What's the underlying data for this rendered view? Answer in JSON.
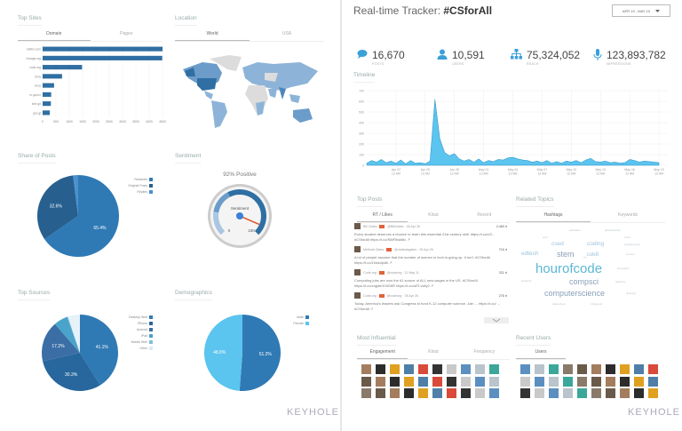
{
  "top_sites": {
    "title": "Top Sites",
    "tabs": [
      "Domain",
      "Pages"
    ],
    "chart_data": {
      "type": "bar",
      "orientation": "horizontal",
      "categories": [
        "twitter.com",
        "change.org",
        "code.org",
        "bit.ly",
        "ow.ly",
        "m.gal.ex",
        "shrt.gd",
        "goo.gl"
      ],
      "values": [
        4500,
        4490,
        1480,
        730,
        430,
        320,
        310,
        270
      ],
      "xlim": [
        0,
        4500
      ],
      "xticks": [
        "0",
        "500",
        "1000",
        "1500",
        "2000",
        "2500",
        "3000",
        "3500",
        "4000",
        "4500"
      ],
      "grid": true,
      "color": "#2f6fa3"
    }
  },
  "location": {
    "title": "Location",
    "tabs": [
      "World",
      "USA"
    ]
  },
  "share_of_posts": {
    "title": "Share of Posts",
    "chart_data": {
      "type": "pie",
      "categories": [
        "Retweets",
        "Original Posts",
        "Replies"
      ],
      "values": [
        65.4,
        32.6,
        2.0
      ],
      "labels": [
        "65.4%",
        "32.6%",
        ""
      ],
      "colors": [
        "#2f7ab5",
        "#27608f",
        "#4a92cf"
      ],
      "legend": "top-right"
    }
  },
  "sentiment": {
    "title": "Sentiment",
    "headline": "92% Positive",
    "gauge_label": "Sentiment",
    "min": "0",
    "max": "100",
    "value": 92
  },
  "top_sources": {
    "title": "Top Sources",
    "chart_data": {
      "type": "pie",
      "categories": [
        "Desktop Web",
        "iPhone",
        "Android",
        "iPad",
        "Mobile Web",
        "Other"
      ],
      "values": [
        41.1,
        30.3,
        17.2,
        6.0,
        0.3,
        5.1
      ],
      "labels": [
        "41.1%",
        "30.3%",
        "17.2%",
        "",
        "",
        ""
      ],
      "colors": [
        "#2f7ab5",
        "#27679d",
        "#3b6ea5",
        "#4aa3cb",
        "#7fbfdc",
        "#e6f2f9"
      ],
      "legend": "top-right"
    }
  },
  "demographics": {
    "title": "Demographics",
    "chart_data": {
      "type": "pie",
      "categories": [
        "Male",
        "Female"
      ],
      "values": [
        51.2,
        48.8
      ],
      "labels": [
        "51.2%",
        "48.8%"
      ],
      "colors": [
        "#2f7ab5",
        "#5bc4ef"
      ],
      "legend": "top-right"
    }
  },
  "logo": "KEYHOLE",
  "tracker": {
    "title_prefix": "Real-time Tracker: ",
    "hashtag": "#CSforAll",
    "date_range": "APR 19 - MAY 19",
    "dropdown_icon": "caret-down"
  },
  "stats": [
    {
      "icon": "speech-bubble",
      "value": "16,670",
      "label": "POSTS"
    },
    {
      "icon": "user",
      "value": "10,591",
      "label": "USERS"
    },
    {
      "icon": "sitemap",
      "value": "75,324,052",
      "label": "REACH"
    },
    {
      "icon": "microphone",
      "value": "123,893,782",
      "label": "IMPRESSIONS"
    }
  ],
  "accent": "#3aa0d8",
  "timeline": {
    "title": "Timeline",
    "chart_data": {
      "type": "area",
      "ylim": [
        0,
        700
      ],
      "yticks": [
        "0",
        "100",
        "200",
        "300",
        "400",
        "500",
        "600",
        "700"
      ],
      "xticks": [
        [
          "Apr 22",
          "12 AM"
        ],
        [
          "Apr 25",
          "12 AM"
        ],
        [
          "Apr 28",
          "12 AM"
        ],
        [
          "May 01",
          "12 AM"
        ],
        [
          "May 04",
          "12 AM"
        ],
        [
          "May 07",
          "12 AM"
        ],
        [
          "May 10",
          "12 AM"
        ],
        [
          "May 13",
          "12 AM"
        ],
        [
          "May 16",
          "12 AM"
        ],
        [
          "May 19",
          "12 AM"
        ]
      ],
      "grid": true,
      "color": "#5bc4ef",
      "x": [
        "Apr 19 12 AM",
        "Apr 19 12 PM",
        "Apr 20 12 AM",
        "Apr 20 12 PM",
        "Apr 21 12 AM",
        "Apr 21 12 PM",
        "Apr 22 12 AM",
        "Apr 22 12 PM",
        "Apr 23 12 AM",
        "Apr 23 12 PM",
        "Apr 24 12 AM",
        "Apr 24 12 PM",
        "Apr 25 12 AM",
        "Apr 25 12 PM",
        "Apr 26 12 AM",
        "Apr 26 12 PM",
        "Apr 27 12 AM",
        "Apr 27 12 PM",
        "Apr 28 12 AM",
        "Apr 28 12 PM",
        "Apr 29 12 AM",
        "Apr 29 12 PM",
        "Apr 30 12 AM",
        "Apr 30 12 PM",
        "May 01 12 AM",
        "May 01 12 PM",
        "May 02 12 AM",
        "May 02 12 PM",
        "May 03 12 AM",
        "May 03 12 PM",
        "May 04 12 AM",
        "May 04 12 PM",
        "May 05 12 AM",
        "May 05 12 PM",
        "May 06 12 AM",
        "May 06 12 PM",
        "May 07 12 AM",
        "May 07 12 PM",
        "May 08 12 AM",
        "May 08 12 PM",
        "May 09 12 AM",
        "May 09 12 PM",
        "May 10 12 AM",
        "May 10 12 PM",
        "May 11 12 AM",
        "May 11 12 PM",
        "May 12 12 AM",
        "May 12 12 PM",
        "May 13 12 AM",
        "May 13 12 PM",
        "May 14 12 AM",
        "May 14 12 PM",
        "May 15 12 AM",
        "May 15 12 PM",
        "May 16 12 AM",
        "May 16 12 PM",
        "May 17 12 AM",
        "May 17 12 PM",
        "May 18 12 AM",
        "May 18 12 PM",
        "May 19 12 AM"
      ],
      "y": [
        20,
        45,
        30,
        55,
        25,
        40,
        20,
        50,
        15,
        45,
        20,
        25,
        15,
        40,
        620,
        250,
        120,
        90,
        110,
        60,
        40,
        55,
        30,
        60,
        25,
        45,
        35,
        55,
        50,
        70,
        75,
        60,
        50,
        45,
        30,
        40,
        25,
        45,
        20,
        35,
        20,
        40,
        30,
        45,
        25,
        50,
        65,
        35,
        30,
        40,
        25,
        30,
        20,
        25,
        55,
        45,
        30,
        40,
        35,
        30,
        25
      ]
    }
  },
  "top_posts": {
    "title": "Top Posts",
    "tabs": [
      "RT / Likes",
      "Klout",
      "Recent"
    ],
    "posts": [
      {
        "name": "Bill Gates",
        "handle": "@BillGates · 26 Apr 26",
        "count": "2,469 rt",
        "text": "Every student deserves a chance to learn this essential 21st century skill: https://t.co/cS... #CSforAll https://t.co/S6tF5wk6lc ↗"
      },
      {
        "name": "Melinda Gates",
        "handle": "@melindagates · 26 Apr 26",
        "count": "716 rt",
        "text": "A lot of people assume that the number of women in tech is going up. It isn't. #CSforAll https://t.co/1Nck4pldk ↗"
      },
      {
        "name": "Code.org",
        "handle": "@codeorg · 11 May 11",
        "count": "321 rt",
        "text": "Computing jobs are now the #1 source of ALL new wages in the US. #CSforAll https://t.co/cnjpteG03G6R https://t.co/uf7Lvwfy2 ↗"
      },
      {
        "name": "Code.org",
        "handle": "@codeorg · 26 Apr 26",
        "count": "276 rt",
        "text": "Today, America's leaders ask Congress to fund K-12 computer science. Join ... https://t.co/ ... #CSforAll ↗"
      }
    ]
  },
  "related_topics": {
    "title": "Related Topics",
    "tabs": [
      "Hashtags",
      "Keywords"
    ],
    "words": [
      {
        "text": "hourofcode",
        "size": "large"
      },
      {
        "text": "computerscience",
        "size": "medium"
      },
      {
        "text": "compsci",
        "size": "medium"
      },
      {
        "text": "stem",
        "size": "medium"
      },
      {
        "text": "edtech",
        "size": "small"
      },
      {
        "text": "_csk8",
        "size": "small"
      },
      {
        "text": "coding",
        "size": "small"
      },
      {
        "text": "csed",
        "size": "small"
      },
      {
        "text": "education",
        "size": "tiny"
      },
      {
        "text": "girlswhocode",
        "size": "tiny"
      },
      {
        "text": "tech",
        "size": "tiny"
      },
      {
        "text": "code",
        "size": "tiny"
      },
      {
        "text": "programming",
        "size": "tiny"
      },
      {
        "text": "women",
        "size": "tiny"
      },
      {
        "text": "innovation",
        "size": "tiny"
      },
      {
        "text": "students",
        "size": "tiny"
      },
      {
        "text": "teachers",
        "size": "tiny"
      },
      {
        "text": "diversity",
        "size": "tiny"
      },
      {
        "text": "makeschool",
        "size": "tiny"
      },
      {
        "text": "csforgood",
        "size": "tiny"
      }
    ]
  },
  "most_influential": {
    "title": "Most Influential",
    "tabs": [
      "Engagement",
      "Klout",
      "Frequency"
    ]
  },
  "recent_users": {
    "title": "Recent Users",
    "tabs": [
      "Users"
    ]
  }
}
